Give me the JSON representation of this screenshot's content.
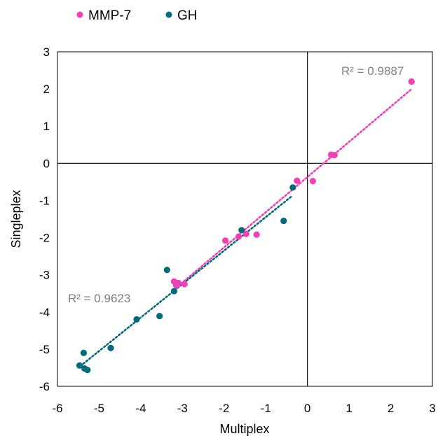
{
  "chart_data": {
    "type": "scatter",
    "title": "",
    "xlabel": "Multiplex",
    "ylabel": "Singleplex",
    "xlim": [
      -6,
      3
    ],
    "ylim": [
      -6,
      3
    ],
    "x_ticks": [
      "-6",
      "-5",
      "-4",
      "-3",
      "-2",
      "-1",
      "0",
      "1",
      "2",
      "3"
    ],
    "y_ticks": [
      "3",
      "2",
      "1",
      "0",
      "-1",
      "-2",
      "-3",
      "-4",
      "-5",
      "-6"
    ],
    "grid": false,
    "legend_position": "top-left",
    "series": [
      {
        "name": "MMP-7",
        "color": "#f23fb8",
        "trendline": "linear",
        "trend_x": [
          -3.1,
          2.5
        ],
        "r2_label": "R² = 0.9887",
        "points": [
          {
            "x": 2.5,
            "y": 2.2
          },
          {
            "x": 0.65,
            "y": 0.22
          },
          {
            "x": 0.57,
            "y": 0.23
          },
          {
            "x": 0.13,
            "y": -0.48
          },
          {
            "x": -0.25,
            "y": -0.47
          },
          {
            "x": -1.22,
            "y": -1.92
          },
          {
            "x": -1.47,
            "y": -1.9
          },
          {
            "x": -1.65,
            "y": -1.97
          },
          {
            "x": -1.97,
            "y": -2.08
          },
          {
            "x": -2.95,
            "y": -3.25
          },
          {
            "x": -3.1,
            "y": -3.22
          },
          {
            "x": -3.15,
            "y": -3.28
          },
          {
            "x": -3.2,
            "y": -3.18
          }
        ]
      },
      {
        "name": "GH",
        "color": "#006b7a",
        "trendline": "linear",
        "trend_x": [
          -5.45,
          -0.38
        ],
        "r2_label": "R² = 0.9623",
        "points": [
          {
            "x": -0.35,
            "y": -0.65
          },
          {
            "x": -0.57,
            "y": -1.55
          },
          {
            "x": -1.58,
            "y": -1.8
          },
          {
            "x": -3.2,
            "y": -3.44
          },
          {
            "x": -3.37,
            "y": -2.87
          },
          {
            "x": -3.55,
            "y": -4.11
          },
          {
            "x": -4.1,
            "y": -4.2
          },
          {
            "x": -4.72,
            "y": -4.97
          },
          {
            "x": -5.37,
            "y": -5.1
          },
          {
            "x": -5.35,
            "y": -5.52
          },
          {
            "x": -5.28,
            "y": -5.56
          },
          {
            "x": -5.47,
            "y": -5.44
          }
        ]
      }
    ]
  }
}
